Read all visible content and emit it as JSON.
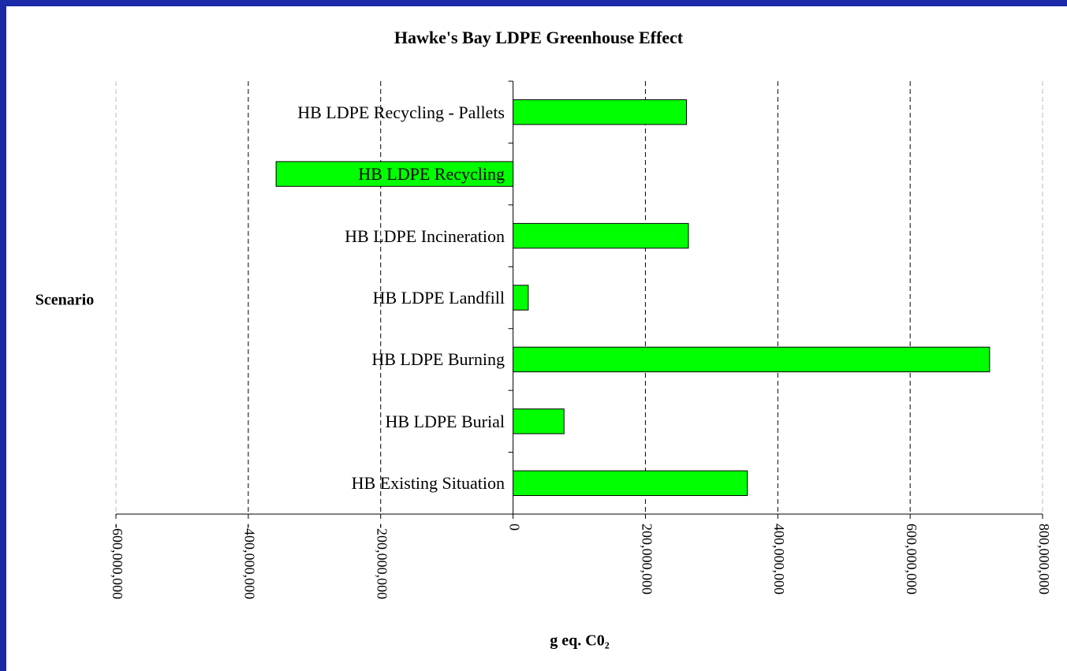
{
  "chart_data": {
    "type": "barh",
    "title": "Hawke's Bay LDPE Greenhouse Effect",
    "y_label": "Scenario",
    "x_label": "g eq. C0₂",
    "categories": [
      "HB LDPE Recycling - Pallets",
      "HB LDPE Recycling",
      "HB LDPE Incineration",
      "HB LDPE Landfill",
      "HB LDPE Burning",
      "HB LDPE Burial",
      "HB Existing Situation"
    ],
    "values": [
      262000000,
      -358000000,
      265000000,
      23000000,
      720000000,
      77000000,
      354000000
    ],
    "color": "#00ff00",
    "xlim": [
      -600000000,
      800000000
    ],
    "xticks": [
      {
        "value": -600000000,
        "label": "-600,000,000"
      },
      {
        "value": -400000000,
        "label": "-400,000,000"
      },
      {
        "value": -200000000,
        "label": "-200,000,000"
      },
      0,
      {
        "value": 200000000,
        "label": "200,000,000"
      },
      {
        "value": 400000000,
        "label": "400,000,000"
      },
      {
        "value": 600000000,
        "label": "600,000,000"
      },
      {
        "value": 800000000,
        "label": "800,000,000"
      }
    ],
    "grid": true
  }
}
